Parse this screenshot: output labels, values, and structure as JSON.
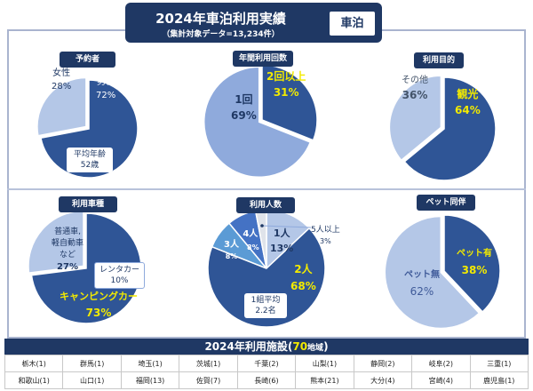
{
  "header": {
    "title": "2024年車泊利用実績",
    "subtitle": "（集計対象データ=13,234件）",
    "logo_text": "車泊"
  },
  "colors": {
    "navy": "#1f3864",
    "dark": "#2f5596",
    "light": "#b4c7e7",
    "mid": "#8faadc",
    "blue3": "#5b9bd5",
    "blue4": "#4472c4",
    "pale": "#dfe3ea",
    "yellow": "#f2ea00"
  },
  "chart_data": [
    {
      "type": "pie",
      "title": "予約者",
      "slices": [
        {
          "label": "男性",
          "value": 72,
          "display": "72%"
        },
        {
          "label": "女性",
          "value": 28,
          "display": "28%"
        }
      ],
      "annotation": {
        "line1": "平均年齢",
        "line2": "52歳"
      }
    },
    {
      "type": "pie",
      "title": "年間利用回数",
      "slices": [
        {
          "label": "2回以上",
          "value": 31,
          "display": "31%"
        },
        {
          "label": "1回",
          "value": 69,
          "display": "69%"
        }
      ]
    },
    {
      "type": "pie",
      "title": "利用目的",
      "slices": [
        {
          "label": "観光",
          "value": 64,
          "display": "64%"
        },
        {
          "label": "その他",
          "value": 36,
          "display": "36%"
        }
      ]
    },
    {
      "type": "pie",
      "title": "利用車種",
      "slices": [
        {
          "label": "キャンピングカー",
          "value": 73,
          "display": "73%"
        },
        {
          "label": "普通車,軽自動車など",
          "value": 27,
          "display": "27%",
          "lines": [
            "普通車,",
            "軽自動車",
            "など"
          ]
        }
      ],
      "annotation": {
        "line1": "レンタカー",
        "line2": "10%"
      }
    },
    {
      "type": "pie",
      "title": "利用人数",
      "slices": [
        {
          "label": "1人",
          "value": 13,
          "display": "13%"
        },
        {
          "label": "2人",
          "value": 68,
          "display": "68%"
        },
        {
          "label": "3人",
          "value": 8,
          "display": "8%"
        },
        {
          "label": "4人",
          "value": 8,
          "display": "8%"
        },
        {
          "label": "5人以上",
          "value": 3,
          "display": "3%"
        }
      ],
      "annotation": {
        "line1": "1組平均",
        "line2": "2.2名"
      }
    },
    {
      "type": "pie",
      "title": "ペット同伴",
      "slices": [
        {
          "label": "ペット有",
          "value": 38,
          "display": "38%"
        },
        {
          "label": "ペット無",
          "value": 62,
          "display": "62%"
        }
      ]
    }
  ],
  "facilities": {
    "title_prefix": "2024年利用施設(",
    "count": "70",
    "count_unit": "地域",
    "title_suffix": ")",
    "rows": [
      [
        "栃木(1)",
        "群馬(1)",
        "埼玉(1)",
        "茨城(1)",
        "千葉(2)",
        "山梨(1)",
        "静岡(2)",
        "岐阜(2)",
        "三重(1)"
      ],
      [
        "和歌山(1)",
        "山口(1)",
        "福岡(13)",
        "佐賀(7)",
        "長崎(6)",
        "熊本(21)",
        "大分(4)",
        "宮崎(4)",
        "鹿児島(1)"
      ]
    ]
  }
}
